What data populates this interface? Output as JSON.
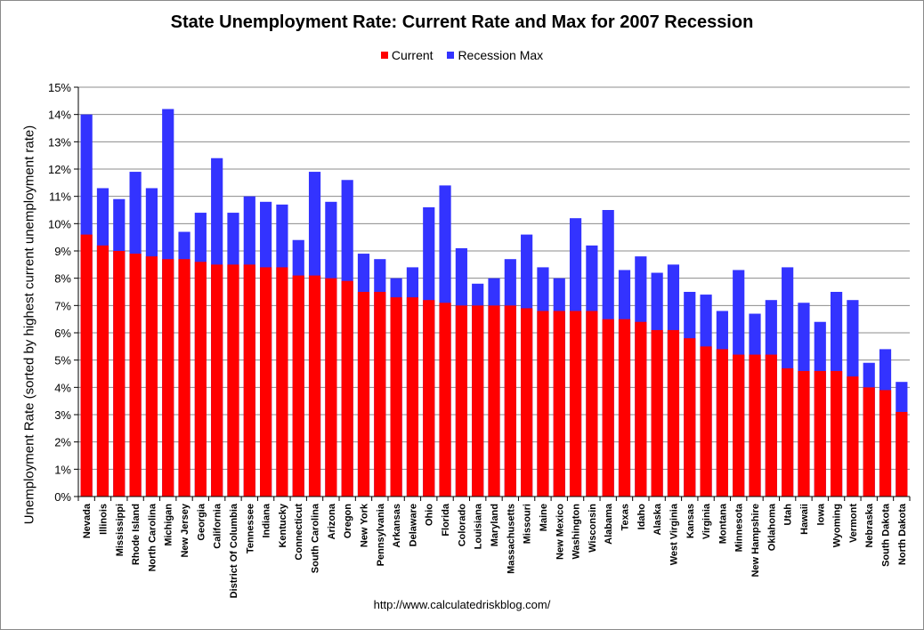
{
  "chart_data": {
    "type": "bar",
    "stacked": false,
    "title": "State Unemployment Rate: Current Rate and Max for 2007 Recession",
    "ylabel": "Unemployment Rate (sorted by highest current unemployment rate)",
    "xlabel": "",
    "ylim": [
      0,
      15
    ],
    "yticks": [
      "0%",
      "1%",
      "2%",
      "3%",
      "4%",
      "5%",
      "6%",
      "7%",
      "8%",
      "9%",
      "10%",
      "11%",
      "12%",
      "13%",
      "14%",
      "15%"
    ],
    "grid": true,
    "legend_position": "top-center",
    "categories": [
      "Nevada",
      "Illinois",
      "Mississippi",
      "Rhode Island",
      "North Carolina",
      "Michigan",
      "New Jersey",
      "Georgia",
      "California",
      "District Of Columbia",
      "Tennessee",
      "Indiana",
      "Kentucky",
      "Connecticut",
      "South Carolina",
      "Arizona",
      "Oregon",
      "New York",
      "Pennsylvania",
      "Arkansas",
      "Delaware",
      "Ohio",
      "Florida",
      "Colorado",
      "Louisiana",
      "Maryland",
      "Massachusetts",
      "Missouri",
      "Maine",
      "New Mexico",
      "Washington",
      "Wisconsin",
      "Alabama",
      "Texas",
      "Idaho",
      "Alaska",
      "West Virginia",
      "Kansas",
      "Virginia",
      "Montana",
      "Minnesota",
      "New Hampshire",
      "Oklahoma",
      "Utah",
      "Hawaii",
      "Iowa",
      "Wyoming",
      "Vermont",
      "Nebraska",
      "South Dakota",
      "North Dakota"
    ],
    "series": [
      {
        "name": "Current",
        "color": "#ff0000",
        "values": [
          9.6,
          9.2,
          9.0,
          8.9,
          8.8,
          8.7,
          8.7,
          8.6,
          8.5,
          8.5,
          8.5,
          8.4,
          8.4,
          8.1,
          8.1,
          8.0,
          7.9,
          7.5,
          7.5,
          7.3,
          7.3,
          7.2,
          7.1,
          7.0,
          7.0,
          7.0,
          7.0,
          6.9,
          6.8,
          6.8,
          6.8,
          6.8,
          6.5,
          6.5,
          6.4,
          6.1,
          6.1,
          5.8,
          5.5,
          5.4,
          5.2,
          5.2,
          5.2,
          4.7,
          4.6,
          4.6,
          4.6,
          4.4,
          4.0,
          3.9,
          3.1
        ]
      },
      {
        "name": "Recession Max",
        "color": "#3333ff",
        "values": [
          14.0,
          11.3,
          10.9,
          11.9,
          11.3,
          14.2,
          9.7,
          10.4,
          12.4,
          10.4,
          11.0,
          10.8,
          10.7,
          9.4,
          11.9,
          10.8,
          11.6,
          8.9,
          8.7,
          8.0,
          8.4,
          10.6,
          11.4,
          9.1,
          7.8,
          8.0,
          8.7,
          9.6,
          8.4,
          8.0,
          10.2,
          9.2,
          10.5,
          8.3,
          8.8,
          8.2,
          8.5,
          7.5,
          7.4,
          6.8,
          8.3,
          6.7,
          7.2,
          8.4,
          7.1,
          6.4,
          7.5,
          7.2,
          4.9,
          5.4,
          4.2
        ]
      }
    ],
    "source": "http://www.calculatedriskblog.com/"
  }
}
